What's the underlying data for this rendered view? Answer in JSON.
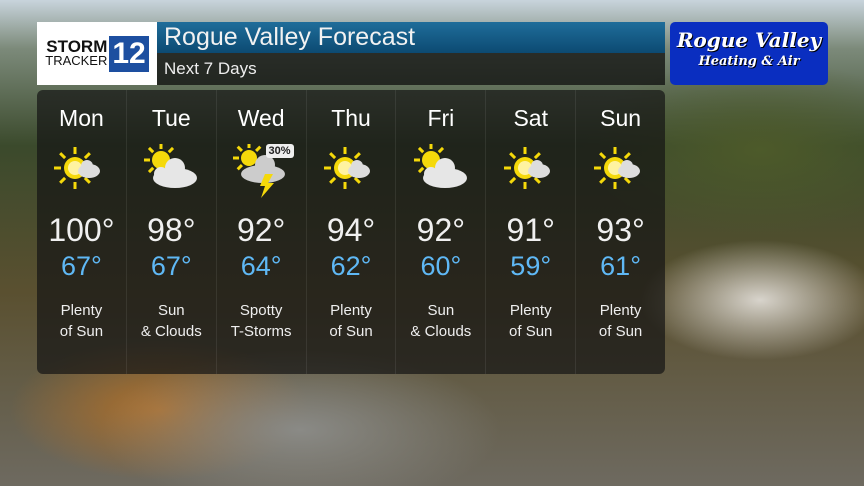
{
  "logo": {
    "line1": "STORM",
    "line2": "TRACKER",
    "number": "12",
    "network": "abc"
  },
  "header": {
    "title": "Rogue Valley Forecast",
    "subtitle": "Next 7 Days"
  },
  "sponsor": {
    "line1": "Rogue Valley",
    "line2": "Heating & Air",
    "color": "#0a2ec0"
  },
  "days": [
    {
      "name": "Mon",
      "icon": "sun-cloud-icon",
      "high": "100°",
      "low": "67°",
      "cond1": "Plenty",
      "cond2": "of Sun"
    },
    {
      "name": "Tue",
      "icon": "partly-cloudy-icon",
      "high": "98°",
      "low": "67°",
      "cond1": "Sun",
      "cond2": "& Clouds"
    },
    {
      "name": "Wed",
      "icon": "thunderstorm-icon",
      "high": "92°",
      "low": "64°",
      "cond1": "Spotty",
      "cond2": "T-Storms",
      "pop": "30%"
    },
    {
      "name": "Thu",
      "icon": "sun-cloud-icon",
      "high": "94°",
      "low": "62°",
      "cond1": "Plenty",
      "cond2": "of Sun"
    },
    {
      "name": "Fri",
      "icon": "partly-cloudy-icon",
      "high": "92°",
      "low": "60°",
      "cond1": "Sun",
      "cond2": "& Clouds"
    },
    {
      "name": "Sat",
      "icon": "sun-cloud-icon",
      "high": "91°",
      "low": "59°",
      "cond1": "Plenty",
      "cond2": "of Sun"
    },
    {
      "name": "Sun",
      "icon": "sun-cloud-icon",
      "high": "93°",
      "low": "61°",
      "cond1": "Plenty",
      "cond2": "of Sun"
    }
  ],
  "colors": {
    "low_temp": "#5fb8f5",
    "title_bar": "#1f6d9a"
  }
}
